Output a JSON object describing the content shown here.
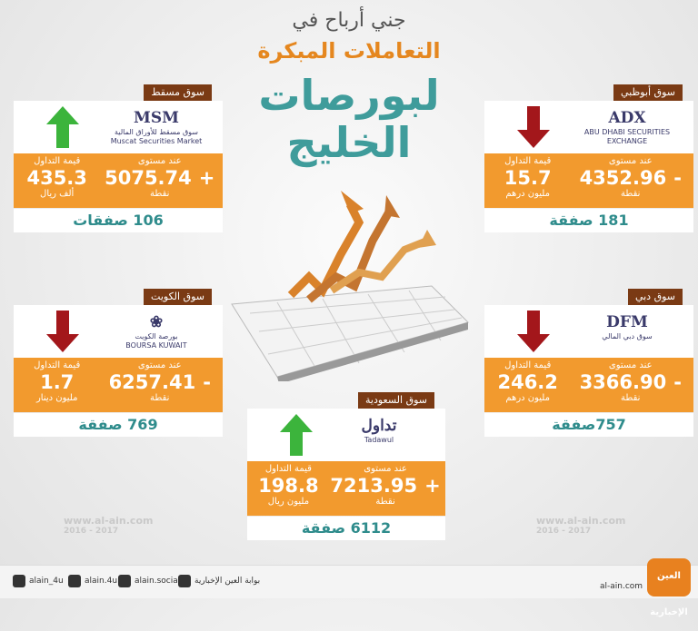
{
  "header": {
    "line1": "جني أرباح في",
    "line2": "التعاملات المبكرة",
    "line3": "لبورصات",
    "line4": "الخليج"
  },
  "markets": [
    {
      "name": "سوق مسقط",
      "logo": [
        "سوق مسقط للأوراق المالية",
        "Muscat Securities Market"
      ],
      "logo_main": "MSM",
      "trend": "up",
      "level_label": "عند مستوى",
      "sign": "+",
      "level": "5075.74",
      "level_unit": "نقطة",
      "value_label": "قيمة التداول",
      "value": "435.3",
      "value_unit": "ألف ريال",
      "deals": "106 صفقات"
    },
    {
      "name": "سوق أبوظبي",
      "logo": [
        "ABU DHABI SECURITIES EXCHANGE"
      ],
      "logo_main": "ADX",
      "trend": "down",
      "level_label": "عند مستوى",
      "sign": "-",
      "level": "4352.96",
      "level_unit": "نقطة",
      "value_label": "قيمة التداول",
      "value": "15.7",
      "value_unit": "مليون درهم",
      "deals": "181 صفقة"
    },
    {
      "name": "سوق الكويت",
      "logo": [
        "بورصة الكويت",
        "BOURSA KUWAIT"
      ],
      "logo_main": "❀",
      "trend": "down",
      "level_label": "عند مستوى",
      "sign": "-",
      "level": "6257.41",
      "level_unit": "نقطة",
      "value_label": "قيمة التداول",
      "value": "1.7",
      "value_unit": "مليون دينار",
      "deals": "769 صفقة"
    },
    {
      "name": "سوق دبي",
      "logo": [
        "سوق دبي المالي"
      ],
      "logo_main": "DFM",
      "trend": "down",
      "level_label": "عند مستوى",
      "sign": "-",
      "level": "3366.90",
      "level_unit": "نقطة",
      "value_label": "قيمة التداول",
      "value": "246.2",
      "value_unit": "مليون درهم",
      "deals": "757صفقة"
    },
    {
      "name": "سوق السعودية",
      "logo": [
        "Tadawul"
      ],
      "logo_main": "تداول",
      "trend": "up",
      "level_label": "عند مستوى",
      "sign": "+",
      "level": "7213.95",
      "level_unit": "نقطة",
      "value_label": "قيمة التداول",
      "value": "198.8",
      "value_unit": "مليون ريال",
      "deals": "6112 صفقة"
    }
  ],
  "watermark": {
    "url": "www.al-ain.com",
    "years": "2016 - 2017"
  },
  "footer": {
    "twitter": "alain_4u",
    "instagram": "alain.4u",
    "facebook": "alain.social",
    "youtube": "بوابة العين الإخبارية",
    "site": "al-ain.com",
    "brand": "العين الإخبارية"
  }
}
